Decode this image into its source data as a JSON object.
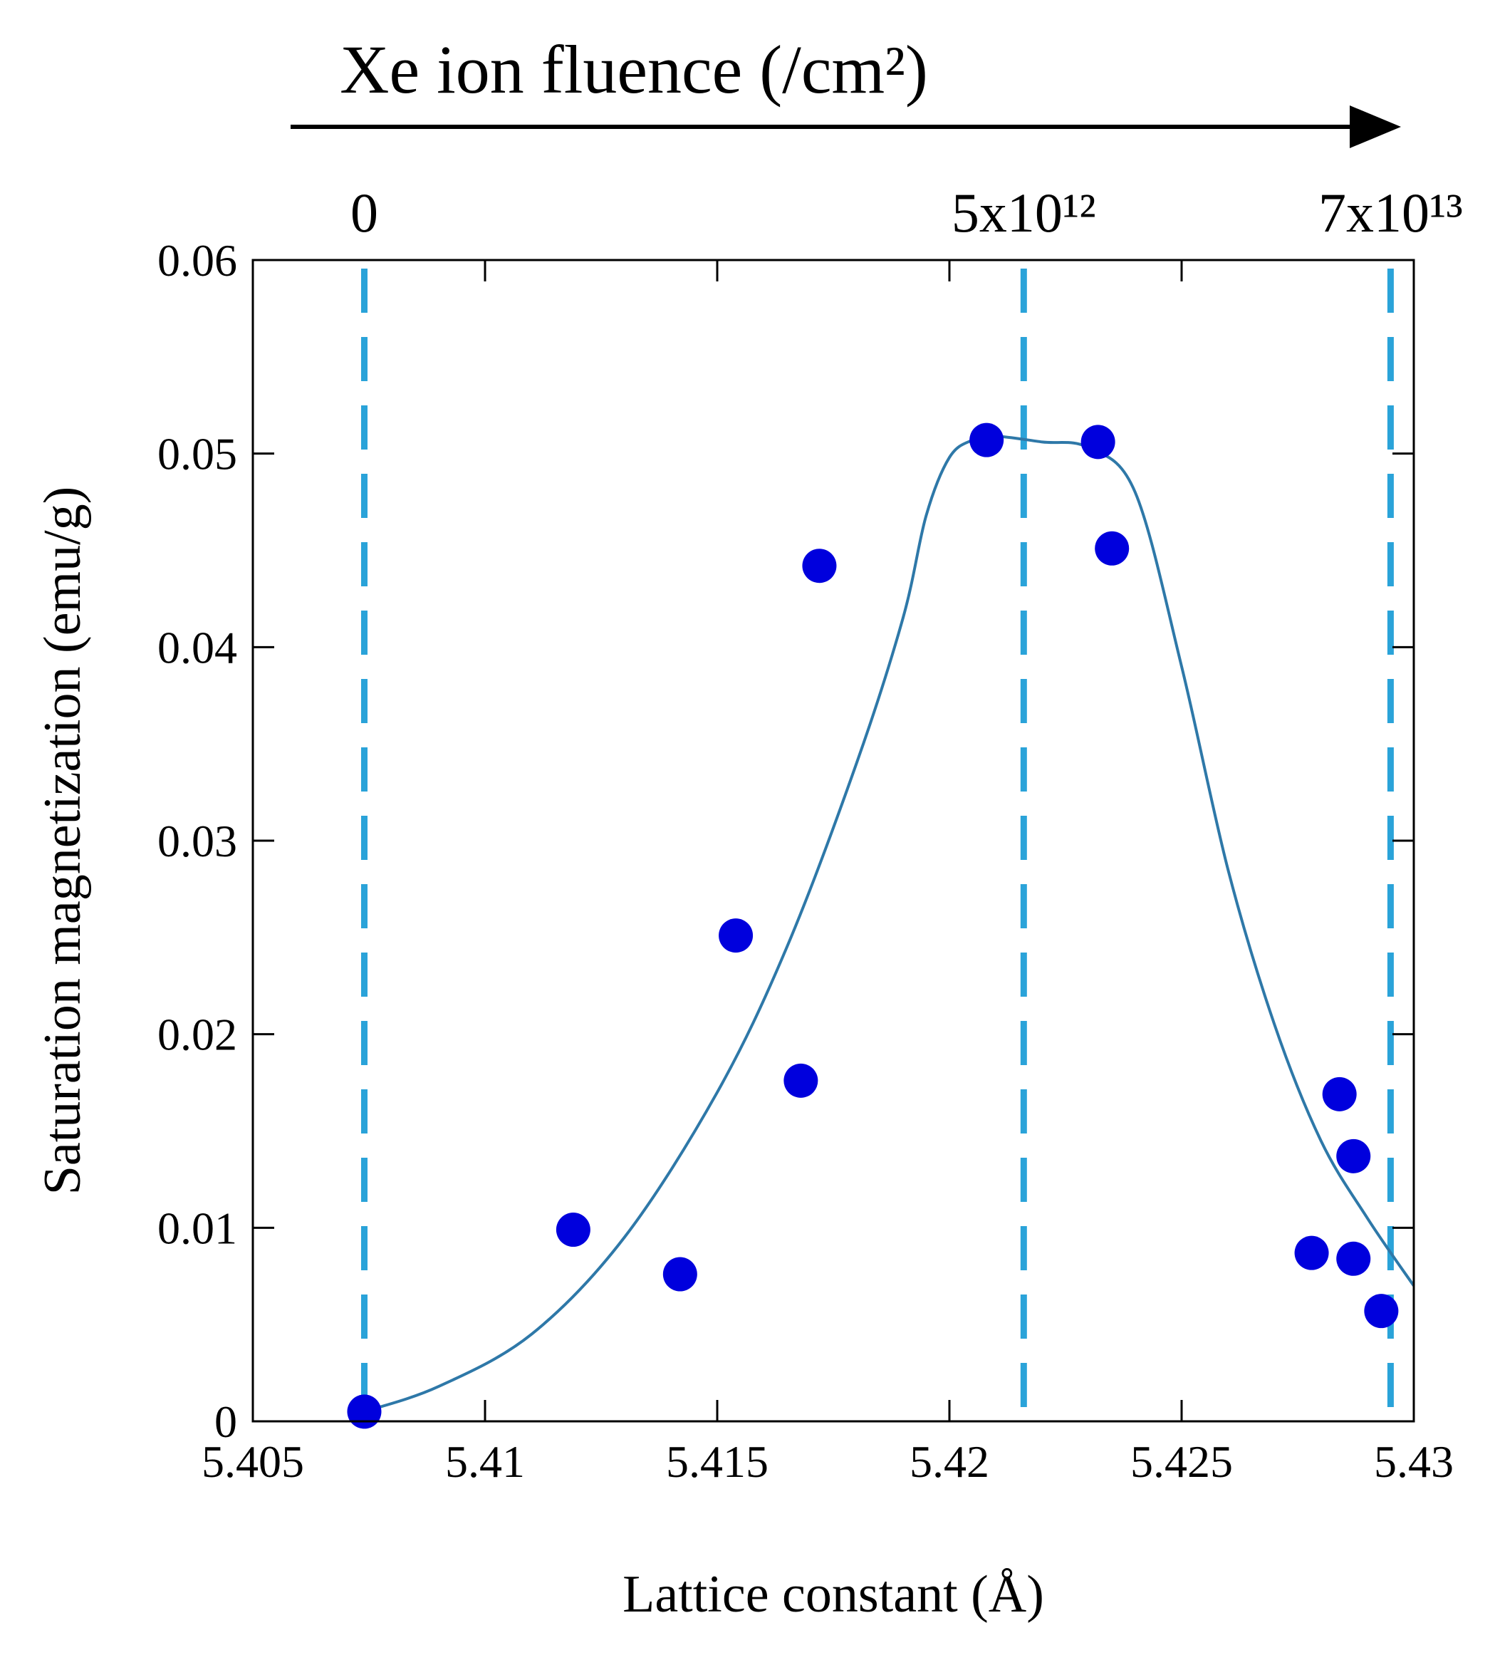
{
  "chart_data": {
    "type": "scatter",
    "title": "Xe ion fluence (/cm²)",
    "top_axis_labels": [
      {
        "x": 5.4074,
        "label": "0"
      },
      {
        "x": 5.4216,
        "label": "5x10¹²"
      },
      {
        "x": 5.4295,
        "label": "7x10¹³"
      }
    ],
    "xlabel": "Lattice constant (Å)",
    "ylabel": "Saturation magnetization (emu/g)",
    "xlim": [
      5.405,
      5.43
    ],
    "ylim": [
      0,
      0.06
    ],
    "xticks": [
      5.405,
      5.41,
      5.415,
      5.42,
      5.425,
      5.43
    ],
    "xtick_labels": [
      "5.405",
      "5.41",
      "5.415",
      "5.42",
      "5.425",
      "5.43"
    ],
    "yticks": [
      0,
      0.01,
      0.02,
      0.03,
      0.04,
      0.05,
      0.06
    ],
    "ytick_labels": [
      "0",
      "0.01",
      "0.02",
      "0.03",
      "0.04",
      "0.05",
      "0.06"
    ],
    "grid": false,
    "vlines": [
      5.4074,
      5.4216,
      5.4295
    ],
    "colors": {
      "points": "#0000dd",
      "curve": "#2e78a8",
      "vlines": "#2aa3d9",
      "axes": "#000000"
    },
    "points": [
      {
        "x": 5.4074,
        "y": 0.0005
      },
      {
        "x": 5.4119,
        "y": 0.0099
      },
      {
        "x": 5.4142,
        "y": 0.0076
      },
      {
        "x": 5.4154,
        "y": 0.0251
      },
      {
        "x": 5.4168,
        "y": 0.0176
      },
      {
        "x": 5.4172,
        "y": 0.0442
      },
      {
        "x": 5.4208,
        "y": 0.0507
      },
      {
        "x": 5.4232,
        "y": 0.0506
      },
      {
        "x": 5.4235,
        "y": 0.0451
      },
      {
        "x": 5.4278,
        "y": 0.0087
      },
      {
        "x": 5.4284,
        "y": 0.0169
      },
      {
        "x": 5.4287,
        "y": 0.0137
      },
      {
        "x": 5.4287,
        "y": 0.0084
      },
      {
        "x": 5.4293,
        "y": 0.0057
      }
    ],
    "fit_curve": {
      "x": [
        5.4074,
        5.409,
        5.411,
        5.413,
        5.415,
        5.4165,
        5.418,
        5.419,
        5.4195,
        5.42,
        5.4205,
        5.421,
        5.422,
        5.423,
        5.424,
        5.425,
        5.426,
        5.427,
        5.428,
        5.429,
        5.43
      ],
      "y": [
        0.0005,
        0.0018,
        0.0045,
        0.0095,
        0.017,
        0.0245,
        0.034,
        0.0415,
        0.0468,
        0.0498,
        0.0507,
        0.0509,
        0.0506,
        0.0503,
        0.048,
        0.039,
        0.0285,
        0.0205,
        0.0145,
        0.0105,
        0.007
      ]
    }
  }
}
